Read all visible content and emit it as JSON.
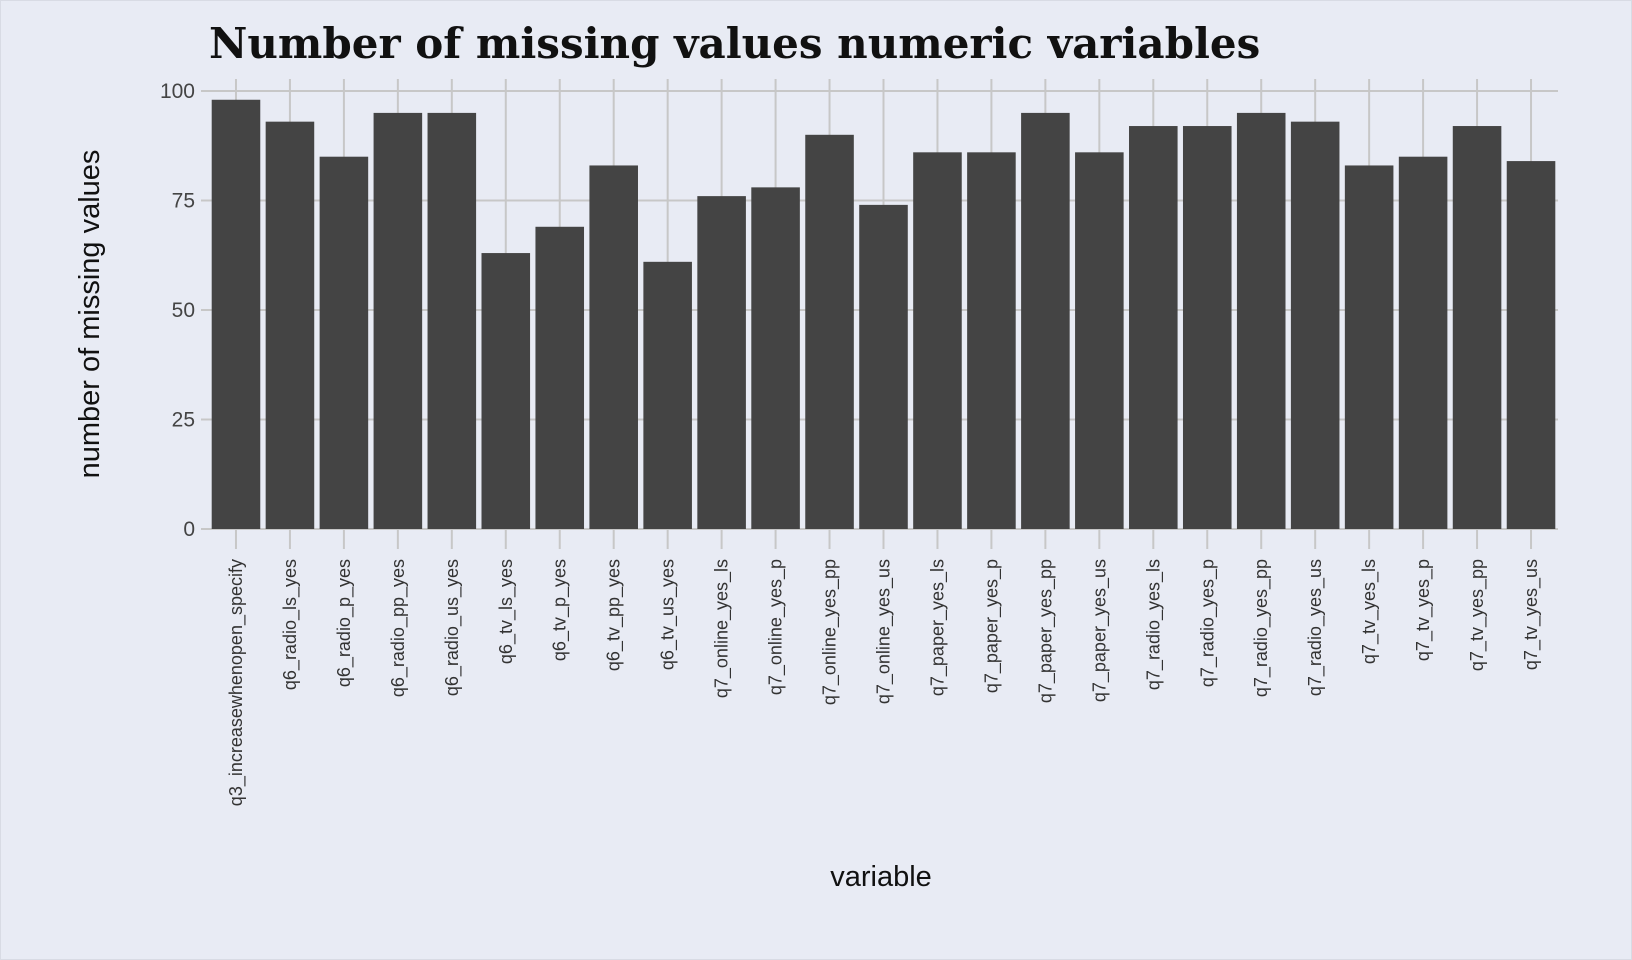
{
  "chart_data": {
    "type": "bar",
    "title": "Number of missing values numeric variables",
    "xlabel": "variable",
    "ylabel": "number of missing values",
    "ylim": [
      0,
      100
    ],
    "yticks": [
      0,
      25,
      50,
      75,
      100
    ],
    "grid": true,
    "categories": [
      "q3_increasewhenopen_specify",
      "q6_radio_ls_yes",
      "q6_radio_p_yes",
      "q6_radio_pp_yes",
      "q6_radio_us_yes",
      "q6_tv_ls_yes",
      "q6_tv_p_yes",
      "q6_tv_pp_yes",
      "q6_tv_us_yes",
      "q7_online_yes_ls",
      "q7_online_yes_p",
      "q7_online_yes_pp",
      "q7_online_yes_us",
      "q7_paper_yes_ls",
      "q7_paper_yes_p",
      "q7_paper_yes_pp",
      "q7_paper_yes_us",
      "q7_radio_yes_ls",
      "q7_radio_yes_p",
      "q7_radio_yes_pp",
      "q7_radio_yes_us",
      "q7_tv_yes_ls",
      "q7_tv_yes_p",
      "q7_tv_yes_pp",
      "q7_tv_yes_us"
    ],
    "values": [
      98,
      93,
      85,
      95,
      95,
      63,
      69,
      83,
      61,
      76,
      78,
      90,
      74,
      86,
      86,
      95,
      86,
      92,
      92,
      95,
      93,
      83,
      85,
      92,
      84
    ],
    "colors": {
      "background": "#e8ebf4",
      "bar": "#444444",
      "grid": "#c7c7c7"
    }
  }
}
